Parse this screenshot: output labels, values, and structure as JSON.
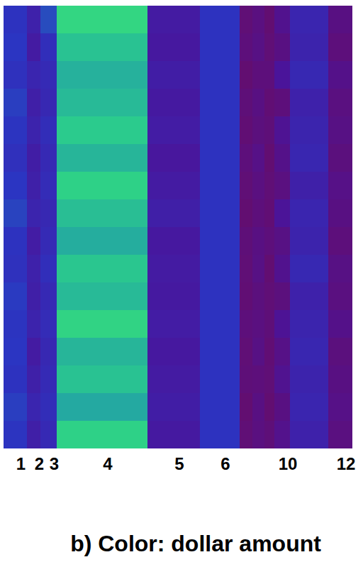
{
  "chart_data": {
    "type": "heatmap",
    "title": "b) Color: dollar amount",
    "categories": [
      "1",
      "2",
      "3",
      "4",
      "5",
      "6",
      null,
      null,
      null,
      "10",
      null,
      "12"
    ],
    "color_range": [
      0,
      100
    ],
    "cells": [
      [
        48,
        50,
        47,
        52,
        49,
        46,
        50,
        53,
        48,
        47,
        51,
        49,
        50,
        48,
        52,
        49
      ],
      [
        35,
        30,
        38,
        33,
        36,
        32,
        34,
        37,
        31,
        35,
        33,
        36,
        30,
        34,
        38,
        33
      ],
      [
        55,
        45,
        42,
        40,
        44,
        41,
        43,
        40,
        42,
        45,
        41,
        43,
        40,
        42,
        44,
        41
      ],
      [
        88,
        82,
        78,
        80,
        84,
        79,
        86,
        81,
        77,
        83,
        80,
        87,
        79,
        82,
        76,
        86
      ],
      [
        30,
        28,
        32,
        29,
        31,
        27,
        30,
        33,
        28,
        30,
        29,
        31,
        28,
        30,
        32,
        29
      ],
      [
        48,
        48,
        48,
        48,
        48,
        48,
        48,
        48,
        48,
        48,
        48,
        48,
        48,
        48,
        48,
        48
      ],
      [
        10,
        12,
        8,
        11,
        9,
        12,
        10,
        8,
        11,
        10,
        9,
        12,
        10,
        11,
        8,
        10
      ],
      [
        14,
        16,
        12,
        15,
        13,
        17,
        14,
        12,
        15,
        16,
        13,
        14,
        16,
        12,
        15,
        14
      ],
      [
        8,
        10,
        12,
        9,
        11,
        8,
        10,
        9,
        12,
        8,
        10,
        11,
        9,
        10,
        8,
        11
      ],
      [
        20,
        15,
        25,
        12,
        22,
        18,
        14,
        24,
        16,
        20,
        13,
        23,
        17,
        21,
        15,
        19
      ],
      [
        38,
        36,
        40,
        35,
        37,
        39,
        34,
        38,
        36,
        40,
        35,
        37,
        39,
        36,
        38,
        35
      ],
      [
        15,
        12,
        18,
        14,
        16,
        13,
        17,
        15,
        12,
        16,
        14,
        18,
        13,
        15,
        17,
        14
      ]
    ]
  }
}
